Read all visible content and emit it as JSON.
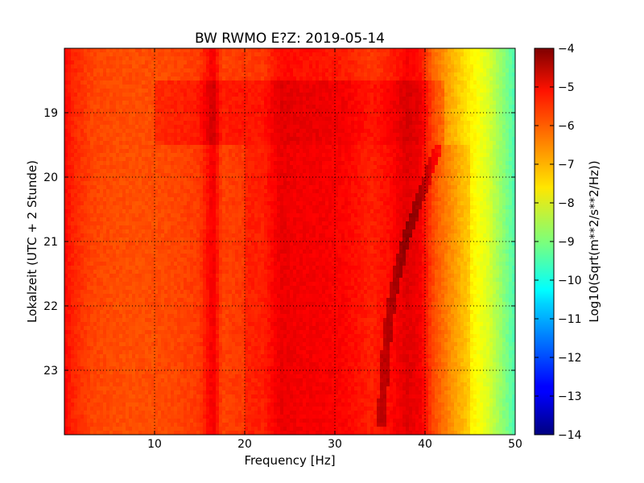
{
  "chart_data": {
    "type": "heatmap",
    "title": "BW RWMO E?Z: 2019-05-14",
    "xlabel": "Frequency [Hz]",
    "ylabel": "Lokalzeit (UTC + 2 Stunde)",
    "xlim": [
      0,
      50
    ],
    "ylim": [
      24,
      18.0
    ],
    "x_ticks": [
      10,
      20,
      30,
      40,
      50
    ],
    "y_ticks": [
      19,
      20,
      21,
      22,
      23
    ],
    "grid": true,
    "colormap": "jet",
    "colorbar": {
      "label": "Log10(Sqrt(m**2/s**2/Hz))",
      "range": [
        -14,
        -4
      ],
      "ticks": [
        -4,
        -5,
        -6,
        -7,
        -8,
        -9,
        -10,
        -11,
        -12,
        -13,
        -14
      ]
    },
    "spectrum_profile": {
      "frequency_hz": [
        0,
        1,
        3,
        6,
        10,
        13,
        15,
        16.5,
        17.5,
        19,
        22,
        24,
        26,
        28,
        31,
        34,
        36,
        38,
        39.5,
        41,
        42.5,
        44,
        45.5,
        47,
        48.5,
        50
      ],
      "log10_amplitude": [
        -5.3,
        -5.6,
        -5.9,
        -6.0,
        -6.0,
        -5.9,
        -5.8,
        -5.1,
        -5.9,
        -5.8,
        -5.8,
        -5.3,
        -5.4,
        -5.4,
        -5.5,
        -5.8,
        -5.6,
        -5.2,
        -5.4,
        -6.3,
        -6.8,
        -7.3,
        -7.7,
        -8.1,
        -8.8,
        -9.5
      ]
    },
    "time_features": [
      {
        "start": 18.5,
        "end": 19.5,
        "description_delta": 0.5
      },
      {
        "start": 19.5,
        "end": 24.0,
        "description_delta": 0.35
      }
    ],
    "tonal_line": {
      "times": [
        19.5,
        20.0,
        20.5,
        21.0,
        21.5,
        22.0,
        22.5,
        23.0,
        23.5,
        23.85
      ],
      "frequencies_hz": [
        41.5,
        40.3,
        39.0,
        37.8,
        36.9,
        36.2,
        35.8,
        35.5,
        35.3,
        35.2
      ]
    }
  }
}
